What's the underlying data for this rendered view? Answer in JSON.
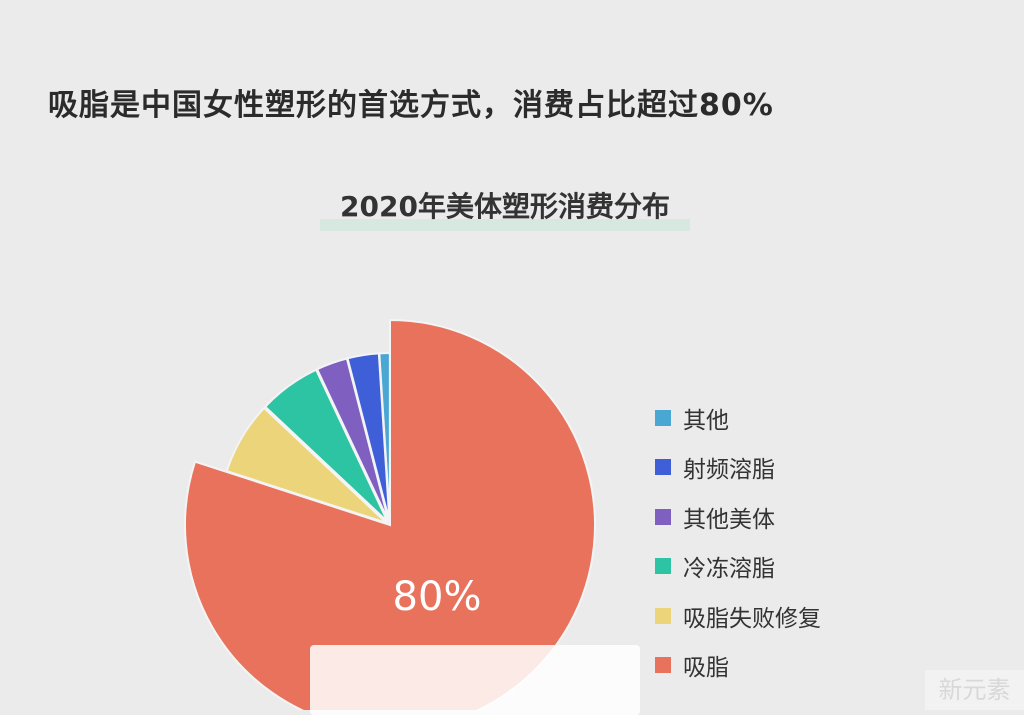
{
  "headline": "吸脂是中国女性塑形的首选方式，消费占比超过80%",
  "watermark": "新元素",
  "chart_data": {
    "type": "pie",
    "title": "2020年美体塑形消费分布",
    "start": "top",
    "direction": "clockwise",
    "slices": [
      {
        "name": "吸脂",
        "value": 80,
        "color": "#e8725c"
      },
      {
        "name": "吸脂失败修复",
        "value": 7,
        "color": "#ecd47a"
      },
      {
        "name": "冷冻溶脂",
        "value": 6,
        "color": "#2dc4a4"
      },
      {
        "name": "其他美体",
        "value": 3,
        "color": "#7f5fc0"
      },
      {
        "name": "射频溶脂",
        "value": 3,
        "color": "#3f5fd8"
      },
      {
        "name": "其他",
        "value": 1,
        "color": "#4aa7d4"
      }
    ],
    "data_label": "80%",
    "legend": [
      "其他",
      "射频溶脂",
      "其他美体",
      "冷冻溶脂",
      "吸脂失败修复",
      "吸脂"
    ],
    "legend_position": "right"
  }
}
